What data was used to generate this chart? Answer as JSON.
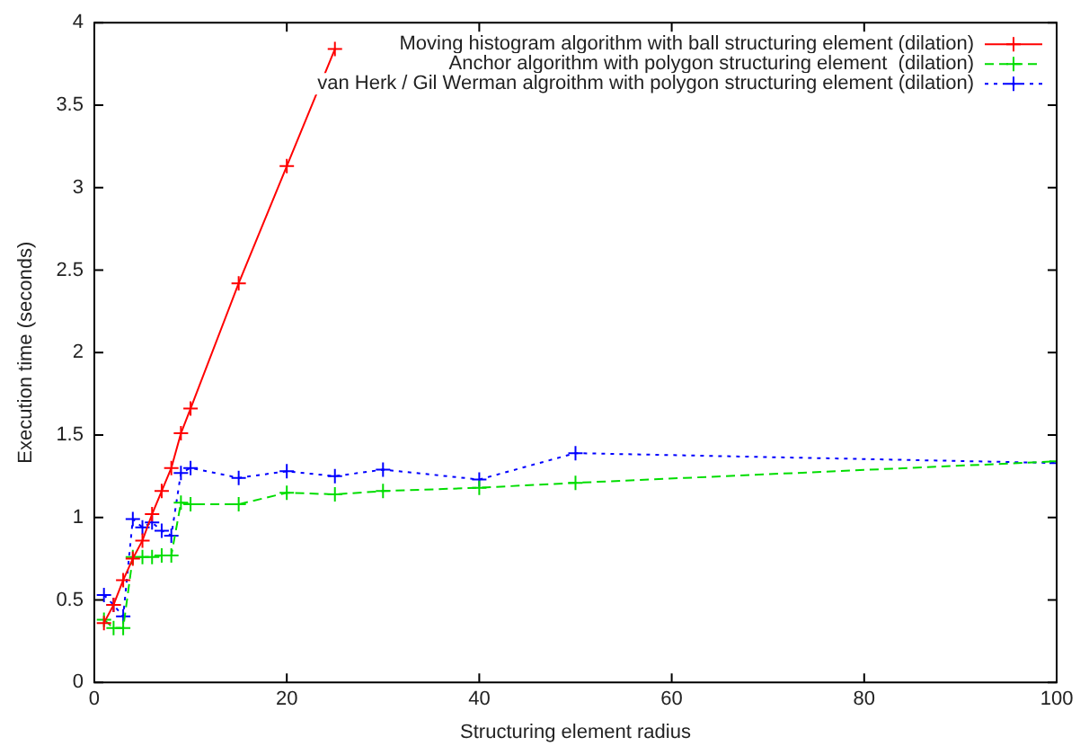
{
  "chart_data": {
    "type": "line",
    "xlabel": "Structuring element radius",
    "ylabel": "Execution time (seconds)",
    "xlim": [
      0,
      100
    ],
    "xticks": [
      0,
      20,
      40,
      60,
      80,
      100
    ],
    "ylim": [
      0,
      4
    ],
    "yticks": [
      0,
      0.5,
      1,
      1.5,
      2,
      2.5,
      3,
      3.5,
      4
    ],
    "grid": false,
    "legend": "top right",
    "series": [
      {
        "name": "Moving histogram algorithm with ball structuring element (dilation)",
        "color": "#ff0000",
        "line_style": "solid",
        "marker": "cross",
        "x": [
          1,
          2,
          3,
          4,
          5,
          6,
          7,
          8,
          9,
          10,
          15,
          20,
          25
        ],
        "values": [
          0.36,
          0.47,
          0.62,
          0.75,
          0.86,
          1.02,
          1.16,
          1.3,
          1.51,
          1.66,
          2.42,
          3.13,
          3.84
        ]
      },
      {
        "name": "Anchor algorithm with polygon structuring element  (dilation)",
        "color": "#00dd00",
        "line_style": "dashed",
        "marker": "cross",
        "x": [
          1,
          2,
          3,
          4,
          5,
          6,
          7,
          8,
          9,
          10,
          15,
          20,
          25,
          30,
          40,
          50,
          100
        ],
        "values": [
          0.38,
          0.33,
          0.33,
          0.76,
          0.76,
          0.76,
          0.77,
          0.77,
          1.09,
          1.08,
          1.08,
          1.15,
          1.14,
          1.16,
          1.18,
          1.21,
          1.34
        ]
      },
      {
        "name": "van Herk / Gil Werman algroithm with polygon structuring element (dilation)",
        "color": "#0000ff",
        "line_style": "dotted",
        "marker": "cross",
        "x": [
          1,
          2,
          3,
          4,
          5,
          6,
          7,
          8,
          9,
          10,
          15,
          20,
          25,
          30,
          40,
          50,
          100
        ],
        "values": [
          0.53,
          0.47,
          0.4,
          0.99,
          0.94,
          0.97,
          0.92,
          0.89,
          1.27,
          1.3,
          1.24,
          1.28,
          1.25,
          1.29,
          1.23,
          1.39,
          1.33
        ]
      }
    ]
  }
}
